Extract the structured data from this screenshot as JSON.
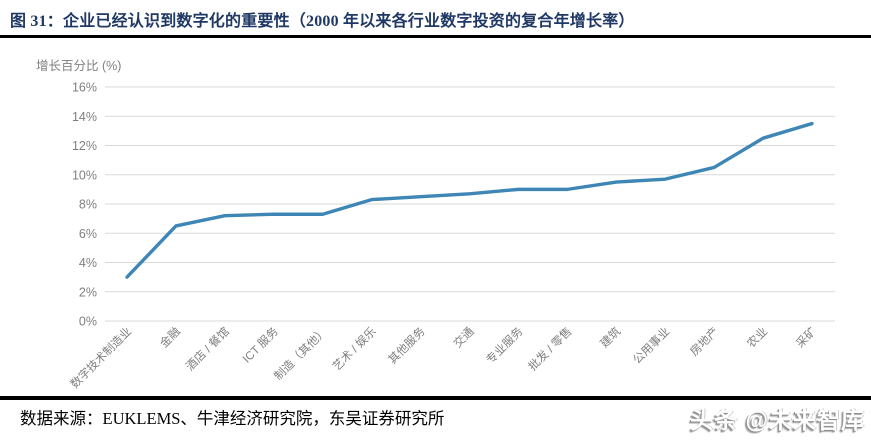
{
  "figure": {
    "title": "图 31：企业已经认识到数字化的重要性（2000 年以来各行业数字投资的复合年增长率）",
    "source_note": "数据来源：EUKLEMS、牛津经济研究院，东吴证券研究所",
    "watermark": "头条 @未来智库"
  },
  "chart_data": {
    "type": "line",
    "title": "企业已经认识到数字化的重要性（2000 年以来各行业数字投资的复合年增长率）",
    "ylabel": "增长百分比 (%)",
    "xlabel": "",
    "categories": [
      "数字技术制造业",
      "金融",
      "酒店 / 餐馆",
      "ICT 服务",
      "制造（其他）",
      "艺术 / 娱乐",
      "其他服务",
      "交通",
      "专业服务",
      "批发 / 零售",
      "建筑",
      "公用事业",
      "房地产",
      "农业",
      "采矿"
    ],
    "values": [
      3.0,
      6.5,
      7.2,
      7.3,
      7.3,
      8.3,
      8.5,
      8.7,
      9.0,
      9.0,
      9.5,
      9.7,
      10.5,
      12.5,
      13.5
    ],
    "ylim": [
      0,
      16
    ],
    "ytick_step": 2,
    "ytick_suffix": "%",
    "grid": true,
    "legend_position": "none",
    "line_color": "#3E86B5",
    "grid_color": "#D9D9D9",
    "tick_color": "#7F7F7F",
    "title_color": "#1F3864"
  }
}
